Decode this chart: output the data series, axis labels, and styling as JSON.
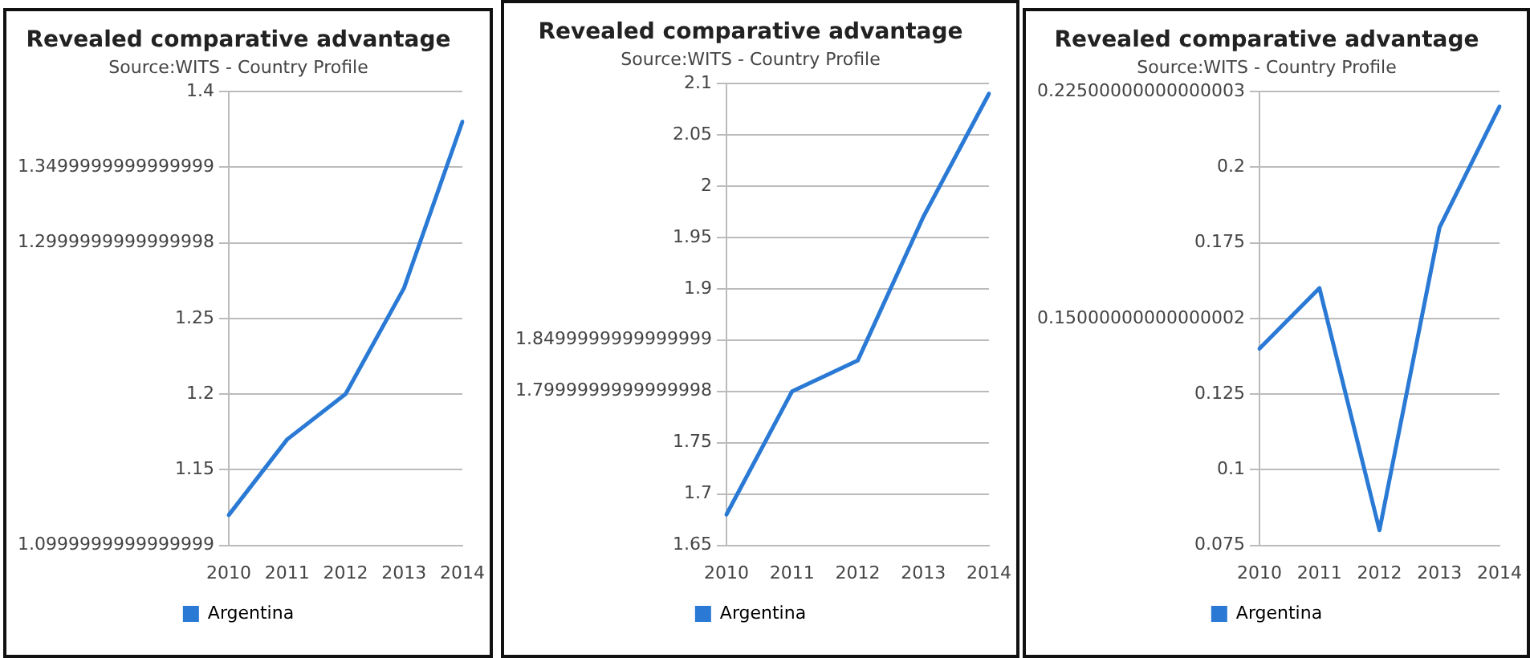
{
  "chart_data": [
    {
      "type": "line",
      "title": "Revealed comparative advantage",
      "subtitle": "Source:WITS - Country Profile",
      "categories": [
        "2010",
        "2011",
        "2012",
        "2013",
        "2014"
      ],
      "series": [
        {
          "name": "Argentina",
          "color": "#2a7ad5",
          "values": [
            1.12,
            1.17,
            1.2,
            1.27,
            1.38
          ]
        }
      ],
      "ylim": [
        1.1,
        1.4
      ],
      "yticks": [
        {
          "value": 1.1,
          "label": "1.0999999999999999"
        },
        1.15,
        1.2,
        1.25,
        {
          "value": 1.3,
          "label": "1.2999999999999998"
        },
        {
          "value": 1.35,
          "label": "1.3499999999999999"
        },
        1.4
      ],
      "grid": "y",
      "legend": "bottom",
      "marker": "none"
    },
    {
      "type": "line",
      "title": "Revealed comparative advantage",
      "subtitle": "Source:WITS - Country Profile",
      "categories": [
        "2010",
        "2011",
        "2012",
        "2013",
        "2014"
      ],
      "series": [
        {
          "name": "Argentina",
          "color": "#2a7ad5",
          "values": [
            1.68,
            1.8,
            1.83,
            1.97,
            2.09
          ]
        }
      ],
      "ylim": [
        1.65,
        2.1
      ],
      "yticks": [
        1.65,
        1.7,
        1.75,
        {
          "value": 1.8,
          "label": "1.7999999999999998"
        },
        {
          "value": 1.85,
          "label": "1.8499999999999999"
        },
        1.9,
        1.95,
        2,
        2.05,
        2.1
      ],
      "grid": "y",
      "legend": "bottom",
      "marker": "none"
    },
    {
      "type": "line",
      "title": "Revealed comparative advantage",
      "subtitle": "Source:WITS - Country Profile",
      "categories": [
        "2010",
        "2011",
        "2012",
        "2013",
        "2014"
      ],
      "series": [
        {
          "name": "Argentina",
          "color": "#2a7ad5",
          "values": [
            0.14,
            0.16,
            0.08,
            0.18,
            0.22
          ]
        }
      ],
      "ylim": [
        0.075,
        0.225
      ],
      "yticks": [
        0.075,
        0.1,
        0.125,
        {
          "value": 0.15,
          "label": "0.15000000000000002"
        },
        0.175,
        0.2,
        {
          "value": 0.225,
          "label": "0.22500000000000003"
        }
      ],
      "grid": "y",
      "legend": "bottom",
      "marker": "none"
    }
  ]
}
